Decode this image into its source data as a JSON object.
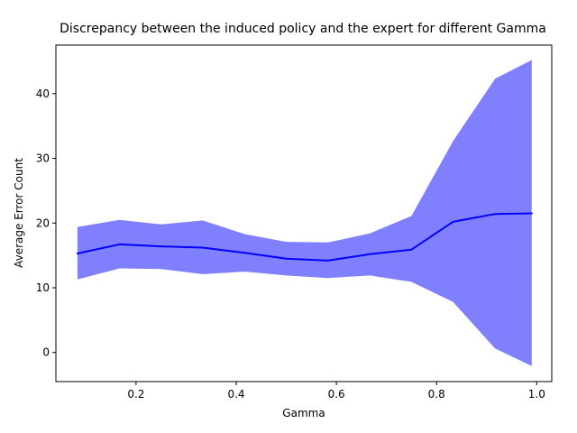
{
  "chart_data": {
    "type": "line",
    "title": "Discrepancy between the induced policy and the expert for different Gamma",
    "xlabel": "Gamma",
    "ylabel": "Average Error Count",
    "xlim": [
      0.04,
      1.03
    ],
    "ylim": [
      -4.5,
      47.5
    ],
    "xticks": [
      "0.2",
      "0.4",
      "0.6",
      "0.8",
      "1.0"
    ],
    "yticks": [
      "0",
      "10",
      "20",
      "30",
      "40"
    ],
    "grid": false,
    "line_color": "#0000ff",
    "band_color": "#8080ff",
    "series": [
      {
        "x": [
          0.083,
          0.167,
          0.25,
          0.333,
          0.417,
          0.5,
          0.583,
          0.667,
          0.75,
          0.833,
          0.917,
          0.99
        ],
        "mean": [
          15.3,
          16.7,
          16.4,
          16.2,
          15.4,
          14.5,
          14.2,
          15.2,
          15.9,
          20.2,
          21.4,
          21.5
        ],
        "upper": [
          19.4,
          20.5,
          19.8,
          20.4,
          18.3,
          17.1,
          17.0,
          18.4,
          21.1,
          32.7,
          42.3,
          45.2
        ],
        "lower": [
          11.3,
          13.0,
          12.9,
          12.1,
          12.5,
          11.9,
          11.5,
          11.9,
          10.9,
          7.8,
          0.6,
          -2.1
        ]
      }
    ]
  }
}
